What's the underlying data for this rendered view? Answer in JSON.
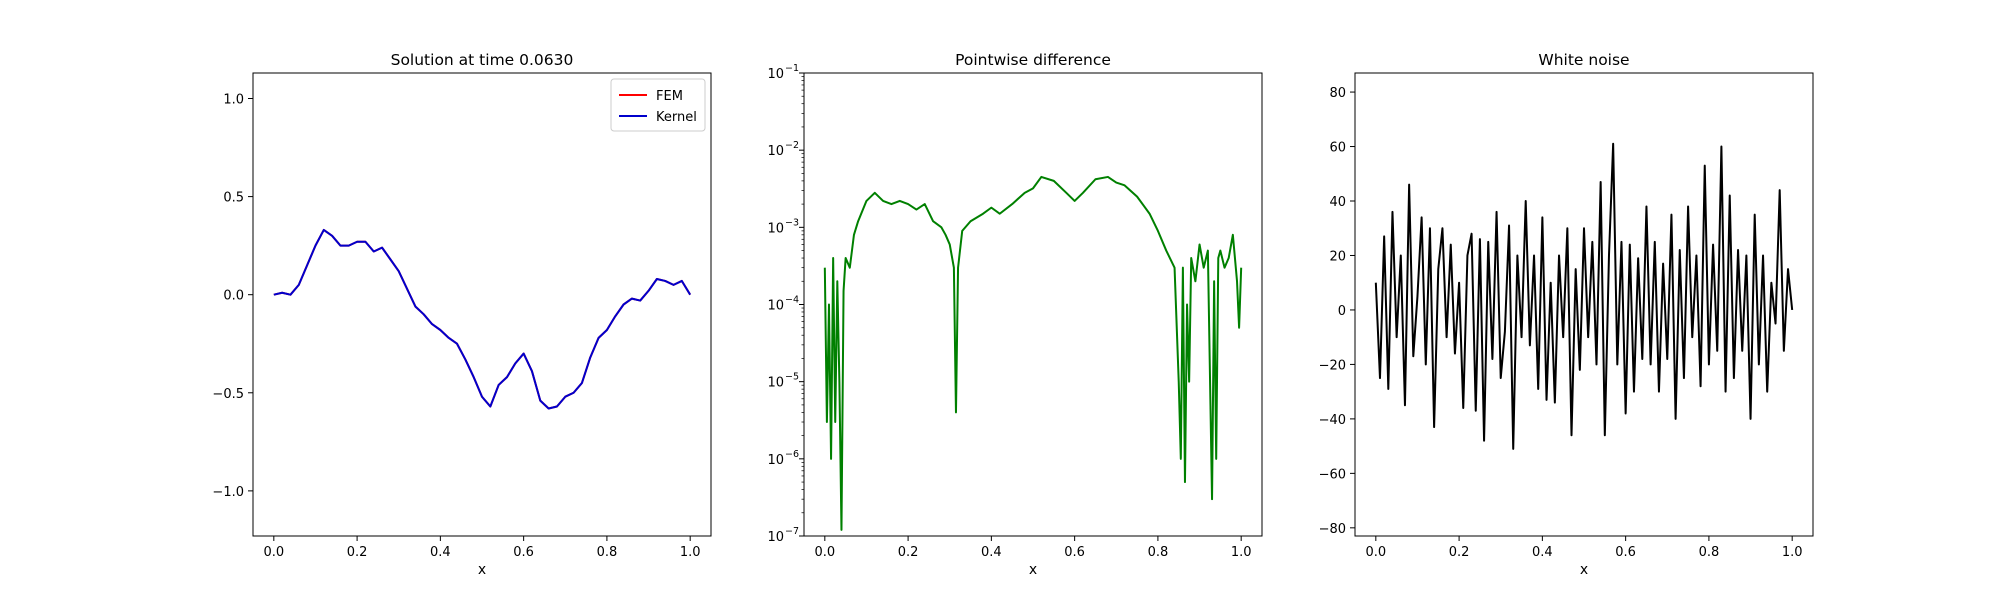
{
  "chart_data": [
    {
      "type": "line",
      "title": "Solution at time 0.0630",
      "xlabel": "x",
      "ylabel": "",
      "xlim": [
        -0.05,
        1.05
      ],
      "ylim": [
        -1.23,
        1.13
      ],
      "xticks": [
        "0.0",
        "0.2",
        "0.4",
        "0.6",
        "0.8",
        "1.0"
      ],
      "xtick_values": [
        0.0,
        0.2,
        0.4,
        0.6,
        0.8,
        1.0
      ],
      "yticks": [
        "−1.0",
        "−0.5",
        "0.0",
        "0.5",
        "1.0"
      ],
      "ytick_values": [
        -1.0,
        -0.5,
        0.0,
        0.5,
        1.0
      ],
      "legend": "top-right",
      "x": [
        0.0,
        0.02,
        0.04,
        0.06,
        0.08,
        0.1,
        0.12,
        0.14,
        0.16,
        0.18,
        0.2,
        0.22,
        0.24,
        0.26,
        0.28,
        0.3,
        0.32,
        0.34,
        0.36,
        0.38,
        0.4,
        0.42,
        0.44,
        0.46,
        0.48,
        0.5,
        0.52,
        0.54,
        0.56,
        0.58,
        0.6,
        0.62,
        0.64,
        0.66,
        0.68,
        0.7,
        0.72,
        0.74,
        0.76,
        0.78,
        0.8,
        0.82,
        0.84,
        0.86,
        0.88,
        0.9,
        0.92,
        0.94,
        0.96,
        0.98,
        1.0
      ],
      "series": [
        {
          "name": "FEM",
          "color": "#ff0000",
          "values": [
            0.0,
            0.01,
            0.0,
            0.05,
            0.15,
            0.25,
            0.33,
            0.3,
            0.25,
            0.25,
            0.27,
            0.27,
            0.22,
            0.24,
            0.18,
            0.12,
            0.03,
            -0.06,
            -0.1,
            -0.15,
            -0.18,
            -0.22,
            -0.25,
            -0.33,
            -0.42,
            -0.52,
            -0.57,
            -0.46,
            -0.42,
            -0.35,
            -0.3,
            -0.39,
            -0.54,
            -0.58,
            -0.57,
            -0.52,
            -0.5,
            -0.45,
            -0.32,
            -0.22,
            -0.18,
            -0.11,
            -0.05,
            -0.02,
            -0.03,
            0.02,
            0.08,
            0.07,
            0.05,
            0.07,
            0.0
          ]
        },
        {
          "name": "Kernel",
          "color": "#0000cc",
          "values": [
            0.0,
            0.01,
            0.0,
            0.05,
            0.15,
            0.25,
            0.33,
            0.3,
            0.25,
            0.25,
            0.27,
            0.27,
            0.22,
            0.24,
            0.18,
            0.12,
            0.03,
            -0.06,
            -0.1,
            -0.15,
            -0.18,
            -0.22,
            -0.25,
            -0.33,
            -0.42,
            -0.52,
            -0.57,
            -0.46,
            -0.42,
            -0.35,
            -0.3,
            -0.39,
            -0.54,
            -0.58,
            -0.57,
            -0.52,
            -0.5,
            -0.45,
            -0.32,
            -0.22,
            -0.18,
            -0.11,
            -0.05,
            -0.02,
            -0.03,
            0.02,
            0.08,
            0.07,
            0.05,
            0.07,
            0.0
          ]
        }
      ]
    },
    {
      "type": "line",
      "title": "Pointwise difference",
      "xlabel": "x",
      "ylabel": "",
      "yscale": "log",
      "xlim": [
        -0.05,
        1.05
      ],
      "ylim": [
        1e-07,
        0.1
      ],
      "xticks": [
        "0.0",
        "0.2",
        "0.4",
        "0.6",
        "0.8",
        "1.0"
      ],
      "xtick_values": [
        0.0,
        0.2,
        0.4,
        0.6,
        0.8,
        1.0
      ],
      "yticks": [
        "10",
        "10",
        "10",
        "10",
        "10",
        "10",
        "10"
      ],
      "ytick_exponents": [
        "−7",
        "−6",
        "−5",
        "−4",
        "−3",
        "−2",
        "−1"
      ],
      "ytick_values": [
        1e-07,
        1e-06,
        1e-05,
        0.0001,
        0.001,
        0.01,
        0.1
      ],
      "x": [
        0.0,
        0.005,
        0.01,
        0.015,
        0.02,
        0.025,
        0.03,
        0.035,
        0.04,
        0.045,
        0.05,
        0.06,
        0.07,
        0.08,
        0.1,
        0.12,
        0.14,
        0.16,
        0.18,
        0.2,
        0.22,
        0.24,
        0.26,
        0.28,
        0.29,
        0.3,
        0.31,
        0.315,
        0.32,
        0.33,
        0.35,
        0.38,
        0.4,
        0.42,
        0.45,
        0.48,
        0.5,
        0.52,
        0.55,
        0.58,
        0.6,
        0.62,
        0.65,
        0.68,
        0.7,
        0.72,
        0.75,
        0.78,
        0.8,
        0.82,
        0.84,
        0.85,
        0.855,
        0.86,
        0.865,
        0.87,
        0.875,
        0.88,
        0.89,
        0.9,
        0.91,
        0.92,
        0.93,
        0.935,
        0.94,
        0.945,
        0.95,
        0.96,
        0.97,
        0.98,
        0.99,
        0.995,
        1.0
      ],
      "series": [
        {
          "name": "",
          "color": "#008000",
          "values": [
            0.0003,
            3e-06,
            0.0001,
            1e-06,
            0.0004,
            3e-06,
            0.0002,
            1e-05,
            1.2e-07,
            0.00015,
            0.0004,
            0.0003,
            0.0008,
            0.0012,
            0.0022,
            0.0028,
            0.0022,
            0.002,
            0.0022,
            0.002,
            0.0017,
            0.002,
            0.0012,
            0.001,
            0.0008,
            0.0006,
            0.0003,
            4e-06,
            0.0003,
            0.0009,
            0.0012,
            0.0015,
            0.0018,
            0.0015,
            0.002,
            0.0028,
            0.0032,
            0.0045,
            0.004,
            0.0028,
            0.0022,
            0.0028,
            0.0042,
            0.0045,
            0.0038,
            0.0035,
            0.0025,
            0.0015,
            0.0009,
            0.0005,
            0.0003,
            1e-05,
            1e-06,
            0.0003,
            5e-07,
            0.0001,
            1e-05,
            0.0004,
            0.0002,
            0.0006,
            0.0003,
            0.0005,
            3e-07,
            0.0002,
            1e-06,
            0.0004,
            0.0005,
            0.0003,
            0.0004,
            0.0008,
            0.0002,
            5e-05,
            0.0003
          ]
        }
      ]
    },
    {
      "type": "line",
      "title": "White noise",
      "xlabel": "x",
      "ylabel": "",
      "xlim": [
        -0.05,
        1.05
      ],
      "ylim": [
        -83,
        87
      ],
      "xticks": [
        "0.0",
        "0.2",
        "0.4",
        "0.6",
        "0.8",
        "1.0"
      ],
      "xtick_values": [
        0.0,
        0.2,
        0.4,
        0.6,
        0.8,
        1.0
      ],
      "yticks": [
        "−80",
        "−60",
        "−40",
        "−20",
        "0",
        "20",
        "40",
        "60",
        "80"
      ],
      "ytick_values": [
        -80,
        -60,
        -40,
        -20,
        0,
        20,
        40,
        60,
        80
      ],
      "x": [
        0.0,
        0.01,
        0.02,
        0.03,
        0.04,
        0.05,
        0.06,
        0.07,
        0.08,
        0.09,
        0.1,
        0.11,
        0.12,
        0.13,
        0.14,
        0.15,
        0.16,
        0.17,
        0.18,
        0.19,
        0.2,
        0.21,
        0.22,
        0.23,
        0.24,
        0.25,
        0.26,
        0.27,
        0.28,
        0.29,
        0.3,
        0.31,
        0.32,
        0.33,
        0.34,
        0.35,
        0.36,
        0.37,
        0.38,
        0.39,
        0.4,
        0.41,
        0.42,
        0.43,
        0.44,
        0.45,
        0.46,
        0.47,
        0.48,
        0.49,
        0.5,
        0.51,
        0.52,
        0.53,
        0.54,
        0.55,
        0.56,
        0.57,
        0.58,
        0.59,
        0.6,
        0.61,
        0.62,
        0.63,
        0.64,
        0.65,
        0.66,
        0.67,
        0.68,
        0.69,
        0.7,
        0.71,
        0.72,
        0.73,
        0.74,
        0.75,
        0.76,
        0.77,
        0.78,
        0.79,
        0.8,
        0.81,
        0.82,
        0.83,
        0.84,
        0.85,
        0.86,
        0.87,
        0.88,
        0.89,
        0.9,
        0.91,
        0.92,
        0.93,
        0.94,
        0.95,
        0.96,
        0.97,
        0.98,
        0.99,
        1.0
      ],
      "series": [
        {
          "name": "",
          "color": "#000000",
          "values": [
            10,
            -25,
            27,
            -29,
            36,
            -10,
            20,
            -35,
            46,
            -17,
            5,
            34,
            -20,
            30,
            -43,
            15,
            30,
            -10,
            24,
            -16,
            10,
            -36,
            20,
            28,
            -37,
            26,
            -48,
            25,
            -18,
            36,
            -25,
            -8,
            31,
            -51,
            20,
            -10,
            40,
            -13,
            20,
            -29,
            34,
            -33,
            10,
            -34,
            20,
            -10,
            30,
            -46,
            15,
            -22,
            30,
            -10,
            25,
            -20,
            47,
            -46,
            20,
            61,
            -20,
            25,
            -38,
            24,
            -30,
            19,
            -18,
            38,
            -20,
            25,
            -30,
            17,
            -18,
            35,
            -40,
            22,
            -25,
            38,
            -10,
            20,
            -28,
            53,
            -20,
            24,
            -15,
            60,
            -30,
            42,
            -25,
            22,
            -15,
            20,
            -40,
            35,
            -20,
            20,
            -30,
            10,
            -5,
            44,
            -15,
            15,
            0
          ]
        }
      ]
    }
  ]
}
